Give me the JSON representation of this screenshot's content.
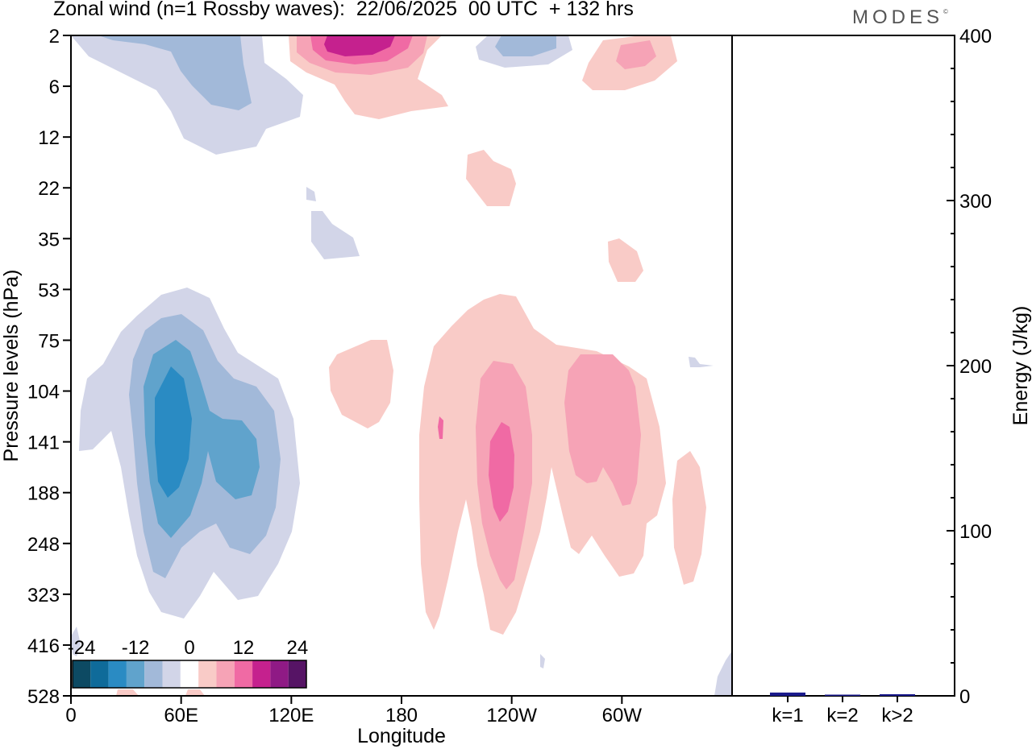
{
  "header": {
    "title": "Zonal wind (n=1 Rossby waves):  22/06/2025  00 UTC  + 132 hrs",
    "logo": "MODES",
    "logo_mark": "©"
  },
  "chart_data": [
    {
      "type": "contour",
      "title": "Zonal wind (n=1 Rossby waves):  22/06/2025  00 UTC  + 132 hrs",
      "xlabel": "Longitude",
      "ylabel": "Pressure levels (hPa)",
      "x_ticks": [
        "0",
        "60E",
        "120E",
        "180",
        "120W",
        "60W"
      ],
      "x_tick_values": [
        0,
        60,
        120,
        180,
        240,
        300
      ],
      "xlim": [
        0,
        360
      ],
      "y_ticks": [
        "2",
        "6",
        "12",
        "22",
        "35",
        "53",
        "75",
        "104",
        "141",
        "188",
        "248",
        "323",
        "416",
        "528"
      ],
      "y_axis": "pressure levels, top to bottom",
      "colorbar": {
        "labels": [
          "-24",
          "-12",
          "0",
          "12",
          "24"
        ],
        "label_values": [
          -24,
          -12,
          0,
          12,
          24
        ],
        "colors": [
          "#0d4a63",
          "#0f6b9a",
          "#2a8bc3",
          "#60a3cc",
          "#a2b9d9",
          "#d2d5e8",
          "#ffffff",
          "#f9cbc7",
          "#f6a3b6",
          "#f06aa4",
          "#c5218e",
          "#8f1a85",
          "#561465"
        ]
      },
      "features": [
        {
          "sign": "negative",
          "level_min": -18,
          "lon": 55,
          "pressure": 141
        },
        {
          "sign": "negative",
          "level_min": -12,
          "lon": 90,
          "pressure": 141
        },
        {
          "sign": "negative",
          "level_min": -6,
          "lon": 60,
          "pressure": 6
        },
        {
          "sign": "positive",
          "level_max": 18,
          "lon": 150,
          "pressure": 2
        },
        {
          "sign": "positive",
          "level_max": 12,
          "lon": 235,
          "pressure": 141
        },
        {
          "sign": "positive",
          "level_max": 6,
          "lon": 265,
          "pressure": 141
        },
        {
          "sign": "positive",
          "level_max": 6,
          "lon": 300,
          "pressure": 4
        }
      ]
    },
    {
      "type": "bar",
      "ylabel": "Energy (J/kg)",
      "categories": [
        "k=1",
        "k=2",
        "k>2"
      ],
      "values": [
        2,
        0.5,
        1
      ],
      "ylim": [
        0,
        400
      ],
      "y_ticks": [
        "0",
        "100",
        "200",
        "300",
        "400"
      ],
      "colors": [
        "#1a1a8c",
        "#1a1a8c",
        "#1a1a8c"
      ]
    }
  ]
}
